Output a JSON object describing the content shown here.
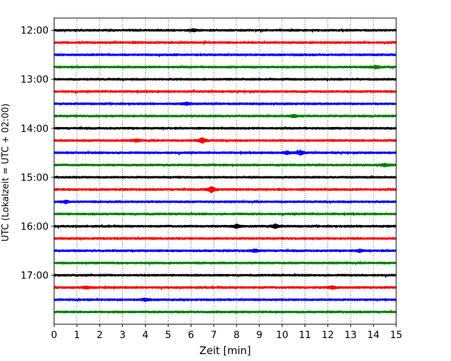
{
  "chart_data": {
    "type": "line",
    "title": "",
    "xlabel": "Zeit  [min]",
    "ylabel": "UTC (Lokalzeit = UTC + 02:00)",
    "xlim": [
      0,
      15
    ],
    "ylim_minutes": [
      705,
      1080
    ],
    "x_ticks": [
      "0",
      "1",
      "2",
      "3",
      "4",
      "5",
      "6",
      "7",
      "8",
      "9",
      "10",
      "11",
      "12",
      "13",
      "14",
      "15"
    ],
    "y_ticks": [
      {
        "label": "12:00",
        "minutes": 720
      },
      {
        "label": "13:00",
        "minutes": 780
      },
      {
        "label": "14:00",
        "minutes": 840
      },
      {
        "label": "15:00",
        "minutes": 900
      },
      {
        "label": "16:00",
        "minutes": 960
      },
      {
        "label": "17:00",
        "minutes": 1020
      }
    ],
    "grid": "vertical dotted at each minute",
    "color_cycle": [
      "#000000",
      "#ff0000",
      "#0000ff",
      "#008000"
    ],
    "rows_start_minutes": 720,
    "row_step_minutes": 15,
    "row_count": 24,
    "events": [
      {
        "row": 0,
        "x": 6.1,
        "amp": 1.5
      },
      {
        "row": 3,
        "x": 14.1,
        "amp": 1.8
      },
      {
        "row": 6,
        "x": 5.8,
        "amp": 1.4
      },
      {
        "row": 7,
        "x": 10.5,
        "amp": 1.5
      },
      {
        "row": 9,
        "x": 6.5,
        "amp": 3.4
      },
      {
        "row": 9,
        "x": 3.6,
        "amp": 1.5
      },
      {
        "row": 10,
        "x": 10.8,
        "amp": 2.8
      },
      {
        "row": 10,
        "x": 10.2,
        "amp": 2.0
      },
      {
        "row": 11,
        "x": 14.5,
        "amp": 1.8
      },
      {
        "row": 13,
        "x": 6.9,
        "amp": 4.0
      },
      {
        "row": 14,
        "x": 0.5,
        "amp": 1.6
      },
      {
        "row": 16,
        "x": 8.0,
        "amp": 2.4
      },
      {
        "row": 16,
        "x": 9.7,
        "amp": 2.6
      },
      {
        "row": 18,
        "x": 8.8,
        "amp": 1.6
      },
      {
        "row": 18,
        "x": 13.4,
        "amp": 1.6
      },
      {
        "row": 21,
        "x": 1.4,
        "amp": 1.4
      },
      {
        "row": 21,
        "x": 12.2,
        "amp": 1.7
      },
      {
        "row": 22,
        "x": 4.0,
        "amp": 1.5
      }
    ]
  }
}
